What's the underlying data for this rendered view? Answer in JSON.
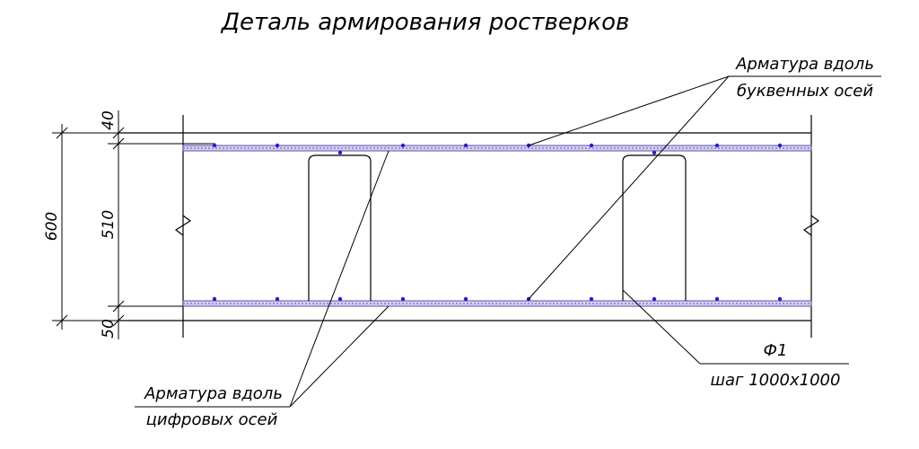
{
  "title": "Деталь армирования ростверков",
  "dimensions": {
    "total": "600",
    "top_cover": "40",
    "middle": "510",
    "bottom_cover": "50"
  },
  "callouts": {
    "letter_axes": {
      "line1": "Арматура вдоль",
      "line2": "буквенных осей"
    },
    "digit_axes": {
      "line1": "Арматура вдоль",
      "line2": "цифровых осей"
    },
    "frame": {
      "line1": "Ф1",
      "line2": "шаг 1000х1000"
    }
  },
  "colors": {
    "drawing": "#000000",
    "rebar": "#5a4fb0",
    "rebar_dot": "#1f1fd0"
  }
}
